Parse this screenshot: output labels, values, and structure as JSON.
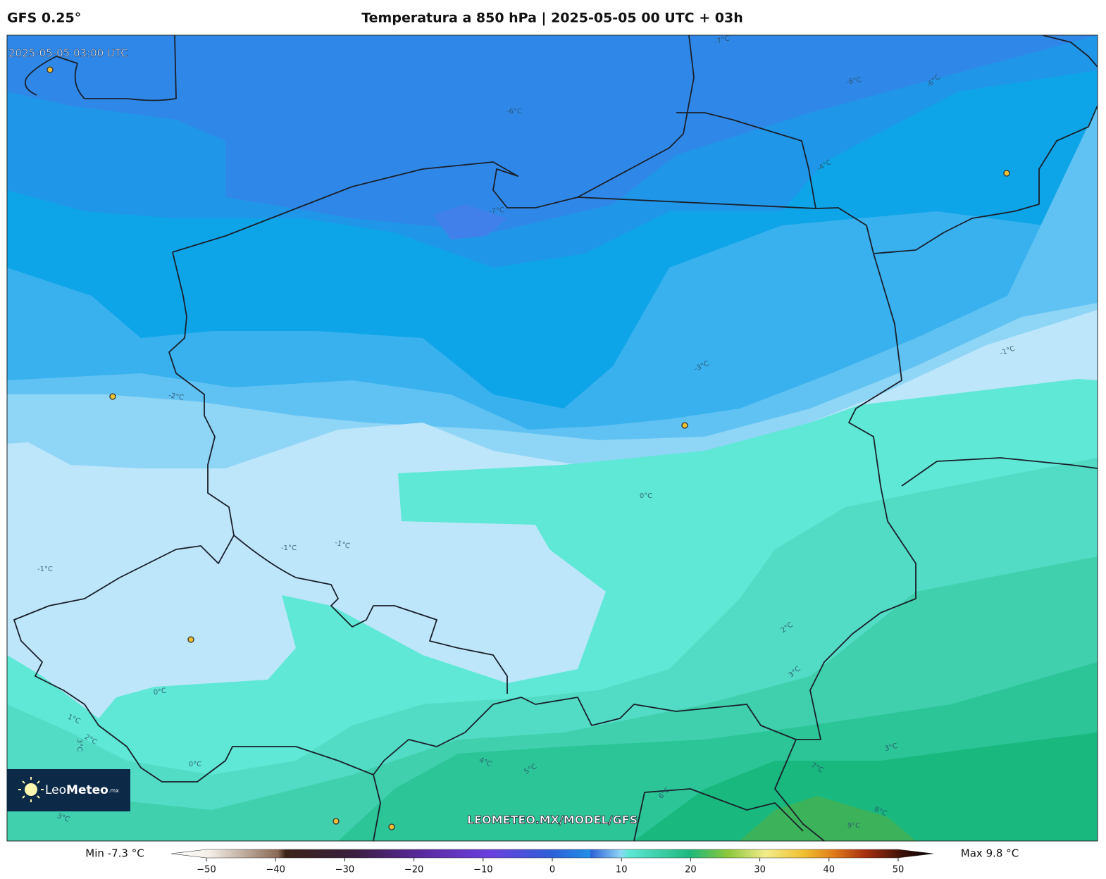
{
  "header": {
    "model": "GFS 0.25°",
    "title": "Temperatura a 850 hPa | 2025-05-05 00 UTC + 03h"
  },
  "map": {
    "timestamp": "2025-05-05 03:00 UTC",
    "watermark": "LEOMETEO.MX/MODEL/GFS",
    "logo": {
      "light": "Leo",
      "bold": "Meteo",
      "tld": ".mx"
    },
    "contour_labels": [
      "-7°C",
      "-6°C",
      "-6°C",
      "-6°C",
      "-7°C",
      "-4°C",
      "-3°C",
      "-2°C",
      "-1°C",
      "0°C",
      "-1°C",
      "-1°C",
      "-1°C",
      "2°C",
      "3°C",
      "0°C",
      "1°C",
      "2°C",
      "3°C",
      "0°C",
      "4°C",
      "5°C",
      "6°C",
      "7°C",
      "3°C",
      "8°C",
      "9°C",
      "3°C"
    ]
  },
  "colorbar": {
    "min_label": "Min -7.3 °C",
    "max_label": "Max 9.8 °C",
    "lim": [
      -50,
      50
    ],
    "ticks": [
      {
        "value": -50,
        "label": "−50"
      },
      {
        "value": -40,
        "label": "−40"
      },
      {
        "value": -30,
        "label": "−30"
      },
      {
        "value": -20,
        "label": "−20"
      },
      {
        "value": -10,
        "label": "−10"
      },
      0,
      10,
      20,
      30,
      40,
      50
    ]
  }
}
